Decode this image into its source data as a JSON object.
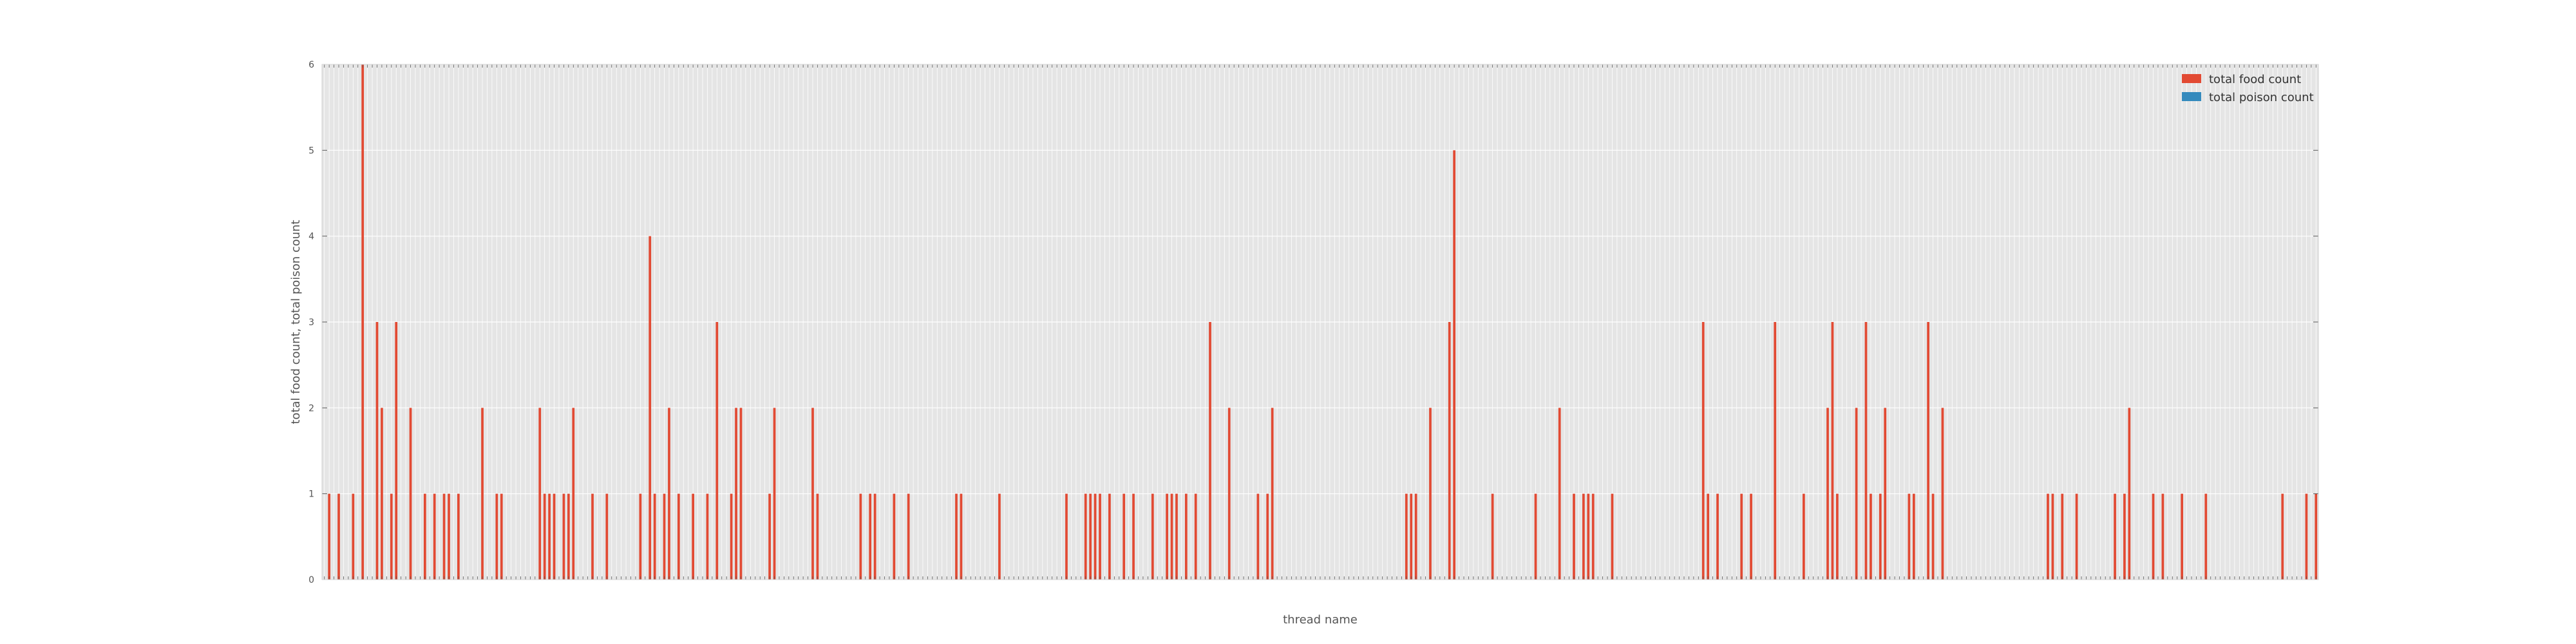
{
  "chart_data": {
    "type": "bar",
    "title": "",
    "xlabel": "thread name",
    "ylabel": "total food count, total poison count",
    "ylim": [
      0,
      6
    ],
    "yticks": [
      "0",
      "1",
      "2",
      "3",
      "4",
      "5",
      "6"
    ],
    "grid": true,
    "legend_position": "top-right",
    "series": [
      {
        "name": "total food count",
        "color": "#e24a33",
        "values": [
          0,
          1,
          0,
          1,
          0,
          0,
          1,
          0,
          6,
          0,
          0,
          3,
          2,
          0,
          1,
          3,
          0,
          0,
          2,
          0,
          0,
          1,
          0,
          1,
          0,
          1,
          1,
          0,
          1,
          0,
          0,
          0,
          0,
          2,
          0,
          0,
          1,
          1,
          0,
          0,
          0,
          0,
          0,
          0,
          0,
          2,
          1,
          1,
          1,
          0,
          1,
          1,
          2,
          0,
          0,
          0,
          1,
          0,
          0,
          1,
          0,
          0,
          0,
          0,
          0,
          0,
          1,
          0,
          4,
          1,
          0,
          1,
          2,
          0,
          1,
          0,
          0,
          1,
          0,
          0,
          1,
          0,
          3,
          0,
          0,
          1,
          2,
          2,
          0,
          0,
          0,
          0,
          0,
          1,
          2,
          0,
          0,
          0,
          0,
          0,
          0,
          0,
          2,
          1,
          0,
          0,
          0,
          0,
          0,
          0,
          0,
          0,
          1,
          0,
          1,
          1,
          0,
          0,
          0,
          1,
          0,
          0,
          1,
          0,
          0,
          0,
          0,
          0,
          0,
          0,
          0,
          0,
          1,
          1,
          0,
          0,
          0,
          0,
          0,
          0,
          0,
          1,
          0,
          0,
          0,
          0,
          0,
          0,
          0,
          0,
          0,
          0,
          0,
          0,
          0,
          1,
          0,
          0,
          0,
          1,
          1,
          1,
          1,
          0,
          1,
          0,
          0,
          1,
          0,
          1,
          0,
          0,
          0,
          1,
          0,
          0,
          1,
          1,
          1,
          0,
          1,
          0,
          1,
          0,
          0,
          3,
          0,
          0,
          0,
          2,
          0,
          0,
          0,
          0,
          0,
          1,
          0,
          1,
          2,
          0,
          0,
          0,
          0,
          0,
          0,
          0,
          0,
          0,
          0,
          0,
          0,
          0,
          0,
          0,
          0,
          0,
          0,
          0,
          0,
          0,
          0,
          0,
          0,
          0,
          0,
          0,
          1,
          1,
          1,
          0,
          0,
          2,
          0,
          0,
          0,
          3,
          5,
          0,
          0,
          0,
          0,
          0,
          0,
          0,
          1,
          0,
          0,
          0,
          0,
          0,
          0,
          0,
          0,
          1,
          0,
          0,
          0,
          0,
          2,
          0,
          0,
          1,
          0,
          1,
          1,
          1,
          0,
          0,
          0,
          1,
          0,
          0,
          0,
          0,
          0,
          0,
          0,
          0,
          0,
          0,
          0,
          0,
          0,
          0,
          0,
          0,
          0,
          0,
          3,
          1,
          0,
          1,
          0,
          0,
          0,
          0,
          1,
          0,
          1,
          0,
          0,
          0,
          0,
          3,
          0,
          0,
          0,
          0,
          0,
          1,
          0,
          0,
          0,
          0,
          2,
          3,
          1,
          0,
          0,
          0,
          2,
          0,
          3,
          1,
          0,
          1,
          2,
          0,
          0,
          0,
          0,
          1,
          1,
          0,
          0,
          3,
          1,
          0,
          2,
          0,
          0,
          0,
          0,
          0,
          0,
          0,
          0,
          0,
          0,
          0,
          0,
          0,
          0,
          0,
          0,
          0,
          0,
          0,
          0,
          0,
          1,
          1,
          0,
          1,
          0,
          0,
          1,
          0,
          0,
          0,
          0,
          0,
          0,
          0,
          1,
          0,
          1,
          2,
          0,
          0,
          0,
          0,
          1,
          0,
          1,
          0,
          0,
          0,
          1,
          0,
          0,
          0,
          0,
          1,
          0,
          0,
          0,
          0,
          0,
          0,
          0,
          0,
          0,
          0,
          0,
          0,
          0,
          0,
          0,
          1,
          0,
          0,
          0,
          0,
          1,
          0,
          1
        ]
      },
      {
        "name": "total poison count",
        "color": "#348abd",
        "values": []
      }
    ]
  }
}
